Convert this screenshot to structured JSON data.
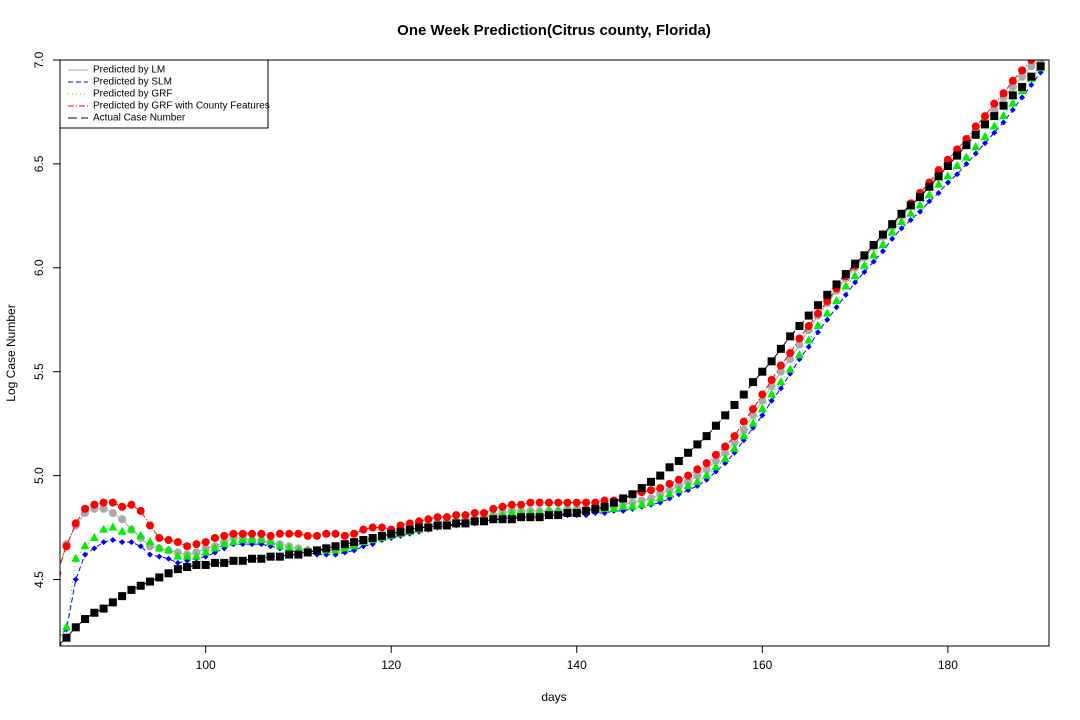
{
  "chart_data": {
    "type": "line",
    "title": "One Week Prediction(Citrus county, Florida)",
    "x_label": "days",
    "y_label": "Log Case Number",
    "xlim": [
      84.3,
      190.9
    ],
    "ylim": [
      4.18,
      7.0
    ],
    "xticks": [
      100,
      120,
      140,
      160,
      180
    ],
    "yticks": [
      4.5,
      {
        "value": 5,
        "label": "5.0"
      },
      5.5,
      {
        "value": 6,
        "label": "6.0"
      },
      6.5,
      {
        "value": 7,
        "label": "7.0"
      }
    ],
    "legend": "top-left",
    "x": [
      84,
      85,
      86,
      87,
      88,
      89,
      90,
      91,
      92,
      93,
      94,
      95,
      96,
      97,
      98,
      99,
      100,
      101,
      102,
      103,
      104,
      105,
      106,
      107,
      108,
      109,
      110,
      111,
      112,
      113,
      114,
      115,
      116,
      117,
      118,
      119,
      120,
      121,
      122,
      123,
      124,
      125,
      126,
      127,
      128,
      129,
      130,
      131,
      132,
      133,
      134,
      135,
      136,
      137,
      138,
      139,
      140,
      141,
      142,
      143,
      144,
      145,
      146,
      147,
      148,
      149,
      150,
      151,
      152,
      153,
      154,
      155,
      156,
      157,
      158,
      159,
      160,
      161,
      162,
      163,
      164,
      165,
      166,
      167,
      168,
      169,
      170,
      171,
      172,
      173,
      174,
      175,
      176,
      177,
      178,
      179,
      180,
      181,
      182,
      183,
      184,
      185,
      186,
      187,
      188,
      189,
      190
    ],
    "series": [
      {
        "name": "Predicted by LM",
        "color": "#aaaaaa",
        "marker": "circle",
        "line_style": "solid",
        "values": [
          4.53,
          4.67,
          4.76,
          4.82,
          4.84,
          4.84,
          4.82,
          4.79,
          4.74,
          4.7,
          4.66,
          4.65,
          4.64,
          4.63,
          4.62,
          4.63,
          4.65,
          4.66,
          4.68,
          4.7,
          4.7,
          4.69,
          4.69,
          4.68,
          4.67,
          4.66,
          4.65,
          4.64,
          4.64,
          4.64,
          4.64,
          4.64,
          4.66,
          4.68,
          4.69,
          4.7,
          4.72,
          4.73,
          4.74,
          4.75,
          4.76,
          4.77,
          4.78,
          4.78,
          4.79,
          4.79,
          4.8,
          4.81,
          4.82,
          4.83,
          4.83,
          4.83,
          4.83,
          4.83,
          4.83,
          4.84,
          4.84,
          4.84,
          4.84,
          4.85,
          4.85,
          4.86,
          4.87,
          4.88,
          4.89,
          4.91,
          4.93,
          4.95,
          4.97,
          5.0,
          5.03,
          5.07,
          5.11,
          5.16,
          5.22,
          5.29,
          5.36,
          5.43,
          5.5,
          5.56,
          5.63,
          5.7,
          5.77,
          5.83,
          5.89,
          5.95,
          6.0,
          6.05,
          6.1,
          6.15,
          6.2,
          6.25,
          6.3,
          6.35,
          6.4,
          6.45,
          6.5,
          6.55,
          6.6,
          6.66,
          6.71,
          6.76,
          6.82,
          6.87,
          6.92,
          6.97,
          7.0
        ]
      },
      {
        "name": "Predicted by SLM",
        "color": "#0000ff",
        "marker": "diamond",
        "line_style": "dashed",
        "values": [
          4.22,
          4.26,
          4.5,
          4.62,
          4.65,
          4.68,
          4.69,
          4.68,
          4.68,
          4.66,
          4.62,
          4.61,
          4.6,
          4.58,
          4.59,
          4.6,
          4.61,
          4.63,
          4.65,
          4.67,
          4.67,
          4.67,
          4.67,
          4.66,
          4.65,
          4.64,
          4.63,
          4.63,
          4.62,
          4.62,
          4.62,
          4.63,
          4.64,
          4.66,
          4.67,
          4.69,
          4.7,
          4.71,
          4.72,
          4.73,
          4.74,
          4.75,
          4.76,
          4.76,
          4.77,
          4.77,
          4.78,
          4.79,
          4.79,
          4.8,
          4.8,
          4.8,
          4.81,
          4.81,
          4.81,
          4.81,
          4.81,
          4.81,
          4.82,
          4.82,
          4.83,
          4.83,
          4.84,
          4.85,
          4.86,
          4.87,
          4.89,
          4.91,
          4.93,
          4.95,
          4.98,
          5.02,
          5.06,
          5.11,
          5.17,
          5.23,
          5.29,
          5.36,
          5.42,
          5.49,
          5.56,
          5.62,
          5.69,
          5.75,
          5.81,
          5.87,
          5.93,
          5.98,
          6.03,
          6.08,
          6.14,
          6.19,
          6.23,
          6.27,
          6.32,
          6.36,
          6.41,
          6.45,
          6.5,
          6.55,
          6.6,
          6.65,
          6.7,
          6.76,
          6.82,
          6.88,
          6.94
        ]
      },
      {
        "name": "Predicted by GRF",
        "color": "#00ee00",
        "marker": "triangle",
        "line_style": "dotted",
        "values": [
          4.24,
          4.27,
          4.6,
          4.66,
          4.7,
          4.74,
          4.75,
          4.73,
          4.74,
          4.71,
          4.68,
          4.65,
          4.64,
          4.61,
          4.61,
          4.61,
          4.63,
          4.65,
          4.67,
          4.68,
          4.69,
          4.69,
          4.69,
          4.68,
          4.66,
          4.65,
          4.64,
          4.64,
          4.64,
          4.64,
          4.64,
          4.65,
          4.66,
          4.68,
          4.69,
          4.7,
          4.71,
          4.72,
          4.73,
          4.74,
          4.75,
          4.76,
          4.77,
          4.77,
          4.78,
          4.78,
          4.79,
          4.8,
          4.81,
          4.82,
          4.82,
          4.82,
          4.82,
          4.83,
          4.83,
          4.83,
          4.83,
          4.83,
          4.84,
          4.84,
          4.84,
          4.85,
          4.85,
          4.86,
          4.87,
          4.89,
          4.91,
          4.93,
          4.95,
          4.97,
          5.0,
          5.04,
          5.08,
          5.13,
          5.19,
          5.25,
          5.32,
          5.39,
          5.45,
          5.51,
          5.58,
          5.65,
          5.72,
          5.78,
          5.84,
          5.91,
          5.96,
          6.01,
          6.06,
          6.11,
          6.17,
          6.22,
          6.26,
          6.3,
          6.35,
          6.4,
          6.44,
          6.49,
          6.53,
          6.58,
          6.63,
          6.68,
          6.73,
          6.79,
          6.85,
          6.91,
          6.96
        ]
      },
      {
        "name": "Predicted by GRF with County Features",
        "color": "#ff0000",
        "marker": "circle",
        "line_style": "dashdot",
        "values": [
          4.53,
          4.66,
          4.77,
          4.84,
          4.86,
          4.87,
          4.87,
          4.85,
          4.86,
          4.83,
          4.76,
          4.7,
          4.69,
          4.68,
          4.66,
          4.67,
          4.68,
          4.7,
          4.71,
          4.72,
          4.72,
          4.72,
          4.72,
          4.71,
          4.72,
          4.72,
          4.72,
          4.71,
          4.71,
          4.72,
          4.72,
          4.71,
          4.72,
          4.74,
          4.75,
          4.75,
          4.74,
          4.76,
          4.77,
          4.78,
          4.79,
          4.8,
          4.8,
          4.81,
          4.81,
          4.82,
          4.82,
          4.84,
          4.85,
          4.86,
          4.86,
          4.87,
          4.87,
          4.87,
          4.87,
          4.87,
          4.87,
          4.87,
          4.87,
          4.88,
          4.88,
          4.89,
          4.91,
          4.92,
          4.93,
          4.94,
          4.96,
          4.98,
          5.0,
          5.03,
          5.06,
          5.1,
          5.14,
          5.19,
          5.26,
          5.32,
          5.39,
          5.46,
          5.53,
          5.59,
          5.66,
          5.72,
          5.78,
          5.84,
          5.9,
          5.96,
          6.01,
          6.06,
          6.11,
          6.16,
          6.21,
          6.26,
          6.31,
          6.36,
          6.41,
          6.47,
          6.52,
          6.57,
          6.62,
          6.68,
          6.73,
          6.79,
          6.84,
          6.9,
          6.95,
          7.0,
          7.02
        ]
      },
      {
        "name": "Actual Case Number",
        "color": "#000000",
        "marker": "square",
        "line_style": "longdash",
        "values": [
          4.18,
          4.22,
          4.27,
          4.31,
          4.34,
          4.36,
          4.39,
          4.42,
          4.45,
          4.47,
          4.49,
          4.51,
          4.53,
          4.55,
          4.56,
          4.57,
          4.57,
          4.58,
          4.58,
          4.59,
          4.59,
          4.6,
          4.6,
          4.61,
          4.61,
          4.62,
          4.62,
          4.63,
          4.64,
          4.65,
          4.66,
          4.67,
          4.68,
          4.69,
          4.7,
          4.71,
          4.72,
          4.73,
          4.74,
          4.75,
          4.75,
          4.76,
          4.76,
          4.77,
          4.77,
          4.78,
          4.78,
          4.79,
          4.79,
          4.79,
          4.8,
          4.8,
          4.8,
          4.81,
          4.81,
          4.82,
          4.82,
          4.83,
          4.84,
          4.85,
          4.87,
          4.89,
          4.91,
          4.94,
          4.97,
          5.0,
          5.04,
          5.07,
          5.11,
          5.15,
          5.19,
          5.24,
          5.29,
          5.34,
          5.39,
          5.45,
          5.5,
          5.55,
          5.61,
          5.67,
          5.72,
          5.77,
          5.82,
          5.87,
          5.92,
          5.97,
          6.02,
          6.06,
          6.11,
          6.16,
          6.21,
          6.26,
          6.3,
          6.34,
          6.39,
          6.44,
          6.49,
          6.54,
          6.59,
          6.64,
          6.69,
          6.73,
          6.78,
          6.83,
          6.87,
          6.92,
          6.97
        ]
      }
    ]
  }
}
